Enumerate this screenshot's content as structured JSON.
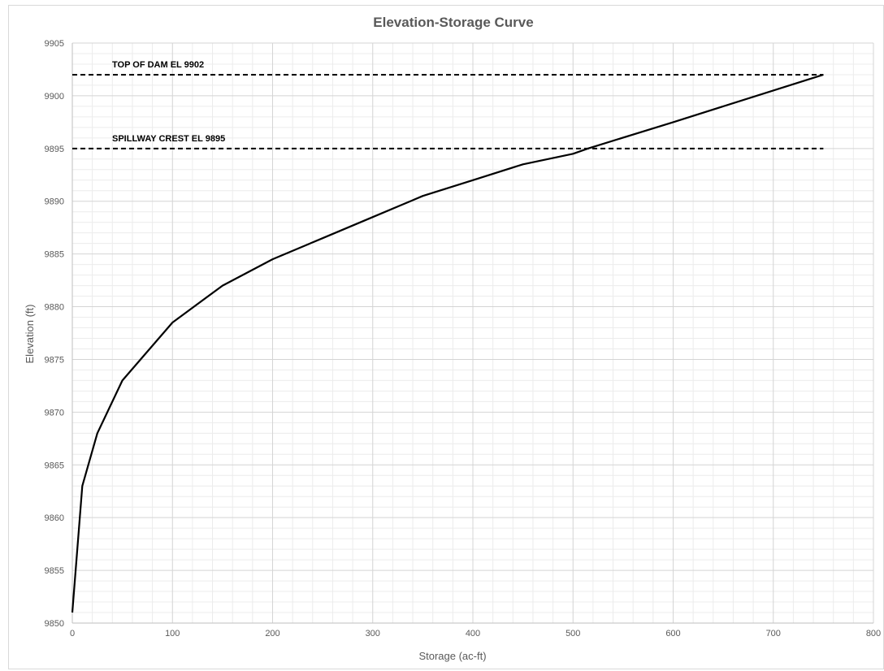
{
  "chart_data": {
    "type": "line",
    "title": "Elevation-Storage Curve",
    "xlabel": "Storage (ac-ft)",
    "ylabel": "Elevation (ft)",
    "xlim": [
      0,
      800
    ],
    "ylim": [
      9850,
      9905
    ],
    "x_ticks": [
      "0",
      "100",
      "200",
      "300",
      "400",
      "500",
      "600",
      "700",
      "800"
    ],
    "y_ticks": [
      "9850",
      "9855",
      "9860",
      "9865",
      "9870",
      "9875",
      "9880",
      "9885",
      "9890",
      "9895",
      "9900",
      "9905"
    ],
    "grid": true,
    "minor_grid": true,
    "series": [
      {
        "x": [
          0,
          10,
          25,
          50,
          100,
          150,
          200,
          250,
          300,
          350,
          400,
          450,
          500,
          515,
          600,
          750
        ],
        "y": [
          9851,
          9863,
          9868,
          9873,
          9878.5,
          9882,
          9884.5,
          9886.5,
          9888.5,
          9890.5,
          9892,
          9893.5,
          9894.5,
          9895,
          9897.5,
          9902
        ],
        "color": "#000000"
      }
    ],
    "reference_lines": [
      {
        "label": "TOP OF DAM EL 9902",
        "y": 9902,
        "x_range": [
          0,
          750
        ],
        "style": "dashed"
      },
      {
        "label": "SPILLWAY CREST EL 9895",
        "y": 9895,
        "x_range": [
          0,
          750
        ],
        "style": "dashed"
      }
    ]
  }
}
